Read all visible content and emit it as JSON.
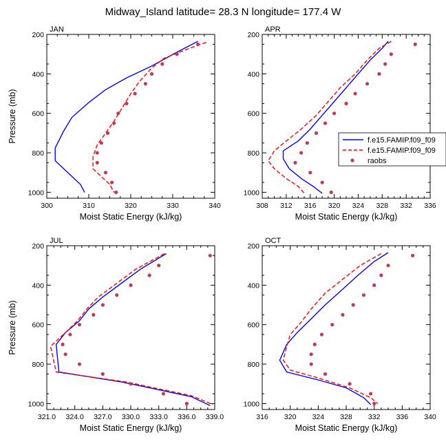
{
  "title": "Midway_Island  latitude= 28.3 N longitude= 177.4 W",
  "legend": {
    "entries": [
      {
        "label": "f.e15.FAMIP.f09_f09",
        "style": "solid",
        "color": "#0000ff"
      },
      {
        "label": "f.e15.FAMIP.f09_f09",
        "style": "dashed",
        "color": "#ff0000"
      },
      {
        "label": "raobs",
        "style": "dot",
        "color": "#c0395a"
      }
    ]
  },
  "chart_data": [
    {
      "type": "line",
      "panel": "JAN",
      "xlabel": "Moist Static Energy (kJ/kg)",
      "ylabel": "Pressure (mb)",
      "xlim": [
        300,
        340
      ],
      "xticks": [
        "300",
        "310",
        "320",
        "330",
        "340"
      ],
      "ylim": [
        200,
        1030
      ],
      "y_reversed": true,
      "yticks": [
        "200",
        "400",
        "600",
        "800",
        "1000"
      ],
      "series": [
        {
          "style": "solid",
          "color": "#0000ff",
          "points": [
            [
              336,
              235
            ],
            [
              331,
              290
            ],
            [
              325,
              360
            ],
            [
              319,
              420
            ],
            [
              314,
              480
            ],
            [
              310,
              545
            ],
            [
              306,
              620
            ],
            [
              304,
              690
            ],
            [
              302,
              775
            ],
            [
              302,
              840
            ],
            [
              305,
              900
            ],
            [
              308,
              960
            ],
            [
              309,
              1000
            ]
          ]
        },
        {
          "style": "dashed",
          "color": "#ff0000",
          "points": [
            [
              338,
              240
            ],
            [
              334,
              270
            ],
            [
              328,
              320
            ],
            [
              325,
              370
            ],
            [
              322,
              440
            ],
            [
              320,
              500
            ],
            [
              318,
              570
            ],
            [
              316,
              640
            ],
            [
              314,
              700
            ],
            [
              312,
              760
            ],
            [
              311,
              820
            ],
            [
              311,
              880
            ],
            [
              313,
              920
            ],
            [
              315,
              960
            ],
            [
              316,
              1000
            ]
          ]
        },
        {
          "style": "dot",
          "color": "#c0395a",
          "points": [
            [
              336.0,
              250
            ],
            [
              331.0,
              300
            ],
            [
              327.5,
              350
            ],
            [
              325.0,
              400
            ],
            [
              323.5,
              450
            ],
            [
              321.0,
              500
            ],
            [
              319.0,
              550
            ],
            [
              317.0,
              600
            ],
            [
              316.0,
              650
            ],
            [
              314.5,
              700
            ],
            [
              313.0,
              750
            ],
            [
              312.0,
              800
            ],
            [
              312.0,
              850
            ],
            [
              314.0,
              900
            ],
            [
              315.5,
              950
            ],
            [
              316.5,
              1000
            ]
          ]
        }
      ]
    },
    {
      "type": "line",
      "panel": "APR",
      "xlabel": "Moist Static Energy (kJ/kg)",
      "ylabel": "",
      "xlim": [
        308,
        336
      ],
      "xticks": [
        "308",
        "312",
        "316",
        "320",
        "324",
        "328",
        "332",
        "336"
      ],
      "ylim": [
        200,
        1030
      ],
      "y_reversed": true,
      "yticks": [
        "200",
        "400",
        "600",
        "800",
        "1000"
      ],
      "series": [
        {
          "style": "solid",
          "color": "#0000ff",
          "points": [
            [
              329.0,
              235
            ],
            [
              328.0,
              270
            ],
            [
              326.0,
              330
            ],
            [
              324.0,
              400
            ],
            [
              322.0,
              470
            ],
            [
              320.0,
              540
            ],
            [
              318.0,
              610
            ],
            [
              316.0,
              680
            ],
            [
              314.0,
              740
            ],
            [
              311.5,
              790
            ],
            [
              311.5,
              830
            ],
            [
              312.5,
              880
            ],
            [
              314.5,
              930
            ],
            [
              316.5,
              970
            ],
            [
              318.0,
              1005
            ]
          ]
        },
        {
          "style": "dashed",
          "color": "#ff0000",
          "points": [
            [
              329.5,
              235
            ],
            [
              327.5,
              270
            ],
            [
              325.5,
              330
            ],
            [
              323.5,
              400
            ],
            [
              321.0,
              470
            ],
            [
              319.0,
              540
            ],
            [
              317.0,
              610
            ],
            [
              314.5,
              680
            ],
            [
              312.0,
              740
            ],
            [
              310.0,
              790
            ],
            [
              309.0,
              840
            ],
            [
              310.0,
              880
            ],
            [
              312.0,
              930
            ],
            [
              314.0,
              970
            ],
            [
              315.0,
              1005
            ]
          ]
        },
        {
          "style": "dot",
          "color": "#c0395a",
          "points": [
            [
              333.5,
              250
            ],
            [
              329.5,
              300
            ],
            [
              328.5,
              350
            ],
            [
              327.5,
              400
            ],
            [
              325.5,
              450
            ],
            [
              323.5,
              500
            ],
            [
              322.0,
              550
            ],
            [
              320.0,
              600
            ],
            [
              318.5,
              650
            ],
            [
              317.0,
              700
            ],
            [
              315.5,
              750
            ],
            [
              314.5,
              800
            ],
            [
              313.5,
              850
            ],
            [
              316.0,
              900
            ],
            [
              318.0,
              950
            ],
            [
              319.5,
              1000
            ]
          ]
        }
      ]
    },
    {
      "type": "line",
      "panel": "JUL",
      "xlabel": "Moist Static Energy (kJ/kg)",
      "ylabel": "Pressure (mb)",
      "xlim": [
        321,
        339
      ],
      "xticks": [
        "321.0",
        "324.0",
        "327.0",
        "330.0",
        "333.0",
        "336.0",
        "339.0"
      ],
      "ylim": [
        200,
        1030
      ],
      "y_reversed": true,
      "yticks": [
        "200",
        "400",
        "600",
        "800",
        "1000"
      ],
      "series": [
        {
          "style": "solid",
          "color": "#0000ff",
          "points": [
            [
              333.8,
              240
            ],
            [
              331.0,
              320
            ],
            [
              329.0,
              390
            ],
            [
              327.0,
              460
            ],
            [
              325.5,
              520
            ],
            [
              324.5,
              580
            ],
            [
              323.0,
              640
            ],
            [
              322.0,
              700
            ],
            [
              322.3,
              840
            ],
            [
              329.0,
              890
            ],
            [
              333.0,
              930
            ],
            [
              336.5,
              965
            ],
            [
              338.5,
              1010
            ]
          ]
        },
        {
          "style": "dashed",
          "color": "#ff0000",
          "points": [
            [
              333.6,
              240
            ],
            [
              330.5,
              320
            ],
            [
              328.5,
              390
            ],
            [
              326.5,
              460
            ],
            [
              325.3,
              520
            ],
            [
              324.3,
              580
            ],
            [
              323.0,
              640
            ],
            [
              321.4,
              710
            ],
            [
              322.0,
              840
            ],
            [
              329.5,
              890
            ],
            [
              333.5,
              930
            ],
            [
              336.5,
              960
            ],
            [
              338.8,
              1005
            ]
          ]
        },
        {
          "style": "dot",
          "color": "#c0395a",
          "points": [
            [
              338.5,
              250
            ],
            [
              333.0,
              300
            ],
            [
              332.0,
              350
            ],
            [
              330.0,
              400
            ],
            [
              328.5,
              450
            ],
            [
              327.0,
              500
            ],
            [
              326.0,
              550
            ],
            [
              324.5,
              600
            ],
            [
              323.5,
              650
            ],
            [
              322.7,
              700
            ],
            [
              323.0,
              750
            ],
            [
              324.5,
              800
            ],
            [
              327.0,
              850
            ],
            [
              330.0,
              900
            ],
            [
              333.5,
              950
            ],
            [
              336.0,
              1000
            ]
          ]
        }
      ]
    },
    {
      "type": "line",
      "panel": "OCT",
      "xlabel": "Moist Static Energy (kJ/kg)",
      "ylabel": "",
      "xlim": [
        316,
        340
      ],
      "xticks": [
        "316",
        "320",
        "324",
        "328",
        "332",
        "336",
        "340"
      ],
      "ylim": [
        200,
        1030
      ],
      "y_reversed": true,
      "yticks": [
        "200",
        "400",
        "600",
        "800",
        "1000"
      ],
      "series": [
        {
          "style": "solid",
          "color": "#0000ff",
          "points": [
            [
              334.0,
              235
            ],
            [
              332.0,
              280
            ],
            [
              330.0,
              340
            ],
            [
              327.5,
              420
            ],
            [
              325.0,
              500
            ],
            [
              323.0,
              570
            ],
            [
              321.0,
              640
            ],
            [
              319.5,
              700
            ],
            [
              318.5,
              780
            ],
            [
              319.5,
              840
            ],
            [
              324.0,
              880
            ],
            [
              328.0,
              920
            ],
            [
              330.5,
              970
            ],
            [
              331.5,
              1005
            ]
          ]
        },
        {
          "style": "dashed",
          "color": "#ff0000",
          "points": [
            [
              333.0,
              240
            ],
            [
              330.0,
              300
            ],
            [
              327.5,
              370
            ],
            [
              325.0,
              440
            ],
            [
              323.0,
              520
            ],
            [
              321.5,
              590
            ],
            [
              320.0,
              650
            ],
            [
              319.5,
              710
            ],
            [
              319.0,
              780
            ],
            [
              320.0,
              830
            ],
            [
              324.0,
              870
            ],
            [
              328.5,
              920
            ],
            [
              331.5,
              970
            ],
            [
              332.5,
              1000
            ]
          ]
        },
        {
          "style": "dot",
          "color": "#c0395a",
          "points": [
            [
              337.5,
              250
            ],
            [
              334.0,
              300
            ],
            [
              333.0,
              350
            ],
            [
              332.0,
              400
            ],
            [
              330.5,
              450
            ],
            [
              329.0,
              500
            ],
            [
              327.5,
              550
            ],
            [
              326.0,
              600
            ],
            [
              324.5,
              650
            ],
            [
              323.5,
              700
            ],
            [
              323.0,
              750
            ],
            [
              323.0,
              800
            ],
            [
              325.0,
              850
            ],
            [
              328.5,
              900
            ],
            [
              331.5,
              950
            ],
            [
              332.0,
              1000
            ]
          ]
        }
      ]
    }
  ]
}
